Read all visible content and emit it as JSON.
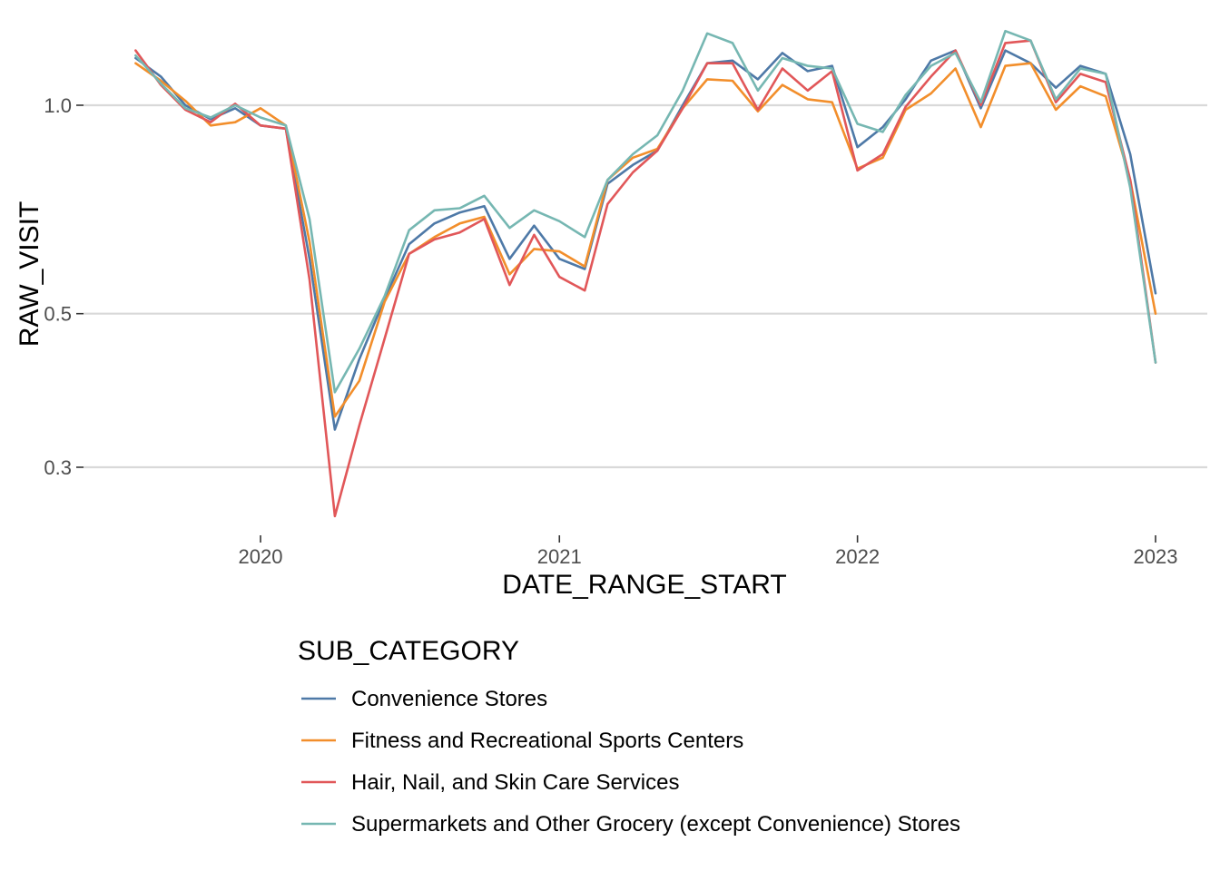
{
  "chart_data": {
    "type": "line",
    "xlabel": "DATE_RANGE_START",
    "ylabel": "RAW_VISIT",
    "x_ticks": [
      "2020",
      "2021",
      "2022",
      "2023"
    ],
    "y_ticks": [
      "0.3",
      "0.5",
      "1.0"
    ],
    "y_scale": "log",
    "ylim": [
      0.25,
      1.35
    ],
    "xlim": [
      "2019-06-15",
      "2023-01-15"
    ],
    "grid": "horizontal major lines",
    "legend": {
      "title": "SUB_CATEGORY",
      "position": "bottom"
    },
    "x": [
      "2019-08-01",
      "2019-09-01",
      "2019-10-01",
      "2019-11-01",
      "2019-12-01",
      "2020-01-01",
      "2020-02-01",
      "2020-03-01",
      "2020-04-01",
      "2020-05-01",
      "2020-06-01",
      "2020-07-01",
      "2020-08-01",
      "2020-09-01",
      "2020-10-01",
      "2020-11-01",
      "2020-12-01",
      "2021-01-01",
      "2021-02-01",
      "2021-03-01",
      "2021-04-01",
      "2021-05-01",
      "2021-06-01",
      "2021-07-01",
      "2021-08-01",
      "2021-09-01",
      "2021-10-01",
      "2021-11-01",
      "2021-12-01",
      "2022-01-01",
      "2022-02-01",
      "2022-03-01",
      "2022-04-01",
      "2022-05-01",
      "2022-06-01",
      "2022-07-01",
      "2022-08-01",
      "2022-09-01",
      "2022-10-01",
      "2022-11-01",
      "2022-12-01",
      "2023-01-01"
    ],
    "series": [
      {
        "name": "Convenience Stores",
        "color": "#4e79a7",
        "values": [
          1.17,
          1.1,
          1.0,
          0.955,
          0.99,
          0.935,
          0.925,
          0.6,
          0.34,
          0.43,
          0.525,
          0.63,
          0.675,
          0.7,
          0.715,
          0.6,
          0.67,
          0.6,
          0.58,
          0.77,
          0.82,
          0.86,
          1.0,
          1.15,
          1.16,
          1.09,
          1.19,
          1.12,
          1.14,
          0.87,
          0.93,
          1.02,
          1.16,
          1.2,
          0.99,
          1.2,
          1.15,
          1.06,
          1.14,
          1.11,
          0.85,
          0.535
        ]
      },
      {
        "name": "Fitness and Recreational Sports Centers",
        "color": "#f28e2b",
        "values": [
          1.15,
          1.085,
          1.015,
          0.935,
          0.945,
          0.99,
          0.935,
          0.635,
          0.355,
          0.4,
          0.52,
          0.61,
          0.645,
          0.675,
          0.69,
          0.57,
          0.62,
          0.615,
          0.585,
          0.78,
          0.84,
          0.865,
          0.99,
          1.09,
          1.085,
          0.98,
          1.07,
          1.02,
          1.01,
          0.81,
          0.84,
          0.985,
          1.04,
          1.13,
          0.93,
          1.14,
          1.15,
          0.985,
          1.065,
          1.03,
          0.78,
          0.5
        ]
      },
      {
        "name": "Hair, Nail, and Skin Care Services",
        "color": "#e15759",
        "values": [
          1.2,
          1.07,
          0.985,
          0.945,
          1.005,
          0.935,
          0.925,
          0.56,
          0.255,
          0.345,
          0.46,
          0.61,
          0.64,
          0.655,
          0.685,
          0.55,
          0.65,
          0.565,
          0.54,
          0.72,
          0.8,
          0.86,
          0.99,
          1.15,
          1.15,
          0.985,
          1.13,
          1.05,
          1.12,
          0.805,
          0.85,
          0.995,
          1.1,
          1.2,
          1.0,
          1.23,
          1.24,
          1.01,
          1.11,
          1.08,
          0.78,
          0.425
        ]
      },
      {
        "name": "Supermarkets and Other Grocery (except Convenience) Stores",
        "color": "#76b7b2",
        "values": [
          1.18,
          1.075,
          0.99,
          0.96,
          1.0,
          0.96,
          0.935,
          0.685,
          0.385,
          0.445,
          0.53,
          0.66,
          0.705,
          0.71,
          0.74,
          0.665,
          0.705,
          0.68,
          0.645,
          0.78,
          0.85,
          0.905,
          1.05,
          1.27,
          1.23,
          1.05,
          1.17,
          1.14,
          1.13,
          0.94,
          0.915,
          1.035,
          1.14,
          1.19,
          1.01,
          1.28,
          1.24,
          1.02,
          1.13,
          1.11,
          0.76,
          0.425
        ]
      }
    ]
  }
}
